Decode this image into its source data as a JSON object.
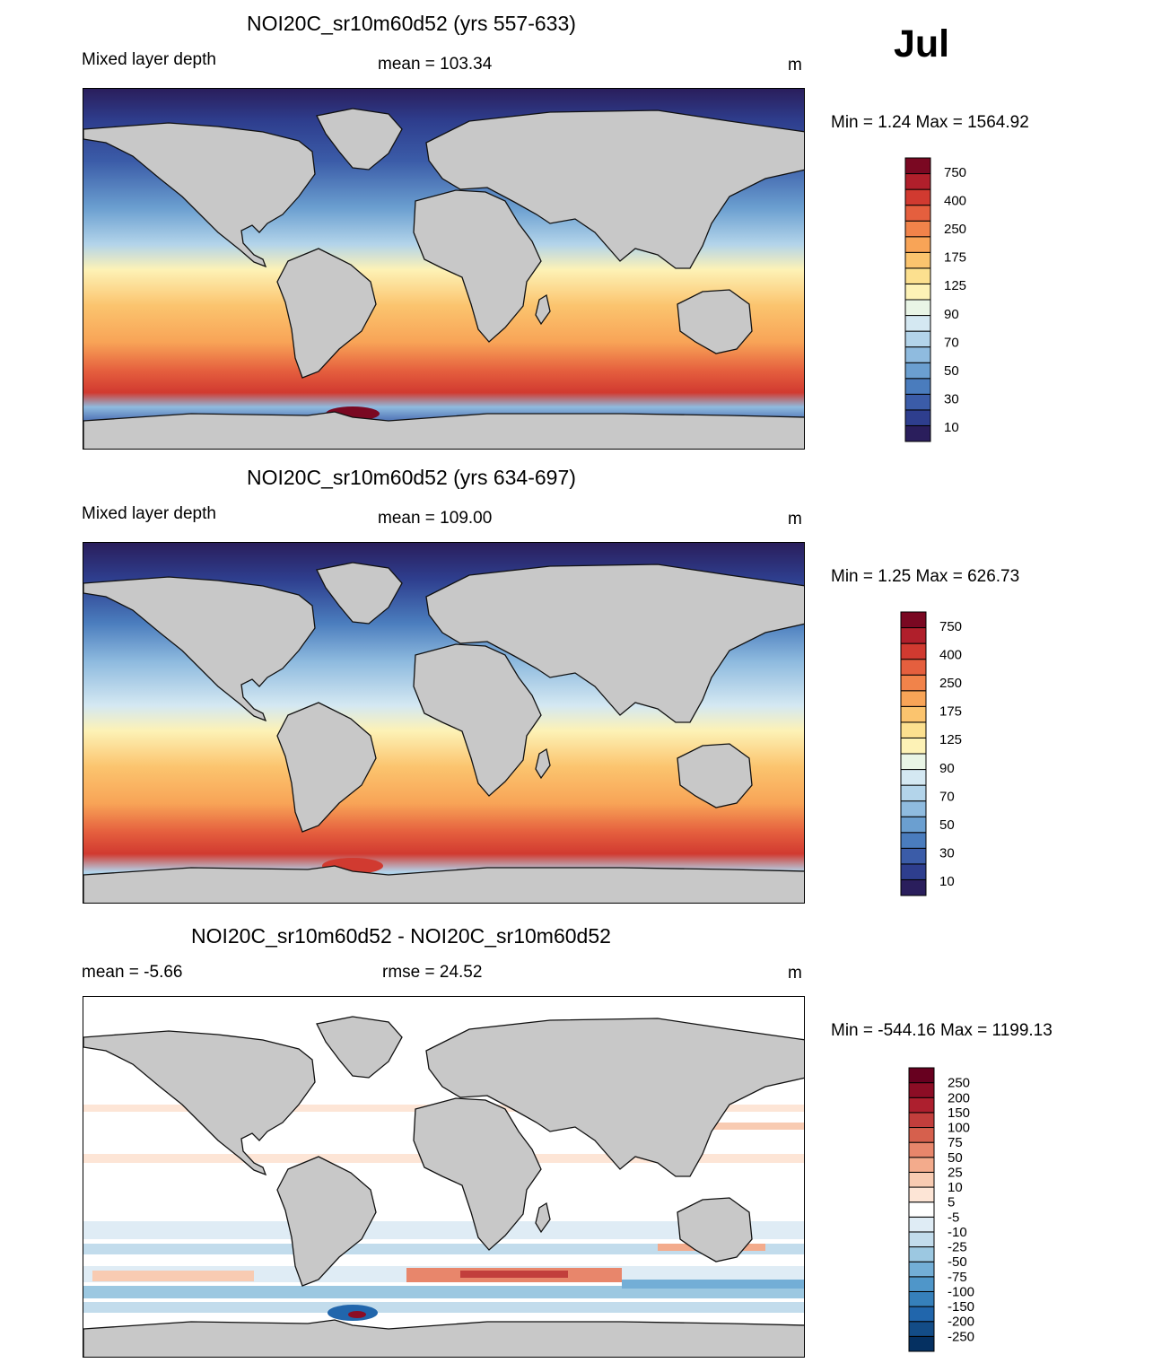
{
  "month": "Jul",
  "panels": [
    {
      "title": "NOI20C_sr10m60d52 (yrs 557-633)",
      "left_label": "Mixed layer depth",
      "center_label": "mean = 103.34",
      "units": "m",
      "minmax": "Min =    1.24 Max = 1564.92",
      "palette": "depth"
    },
    {
      "title": "NOI20C_sr10m60d52 (yrs 634-697)",
      "left_label": "Mixed layer depth",
      "center_label": "mean = 109.00",
      "units": "m",
      "minmax": "Min =    1.25 Max = 626.73",
      "palette": "depth"
    },
    {
      "title": "NOI20C_sr10m60d52 - NOI20C_sr10m60d52",
      "left_label": "mean =  -5.66",
      "center_label": "rmse =  24.52",
      "units": "m",
      "minmax": "Min = -544.16 Max = 1199.13",
      "palette": "diff"
    }
  ],
  "colorbars": {
    "depth": {
      "colors": [
        "#2a1e5c",
        "#2e3e8e",
        "#3b5ca8",
        "#4a7cbd",
        "#6b9fd0",
        "#8fbbdf",
        "#b3d4ea",
        "#d4e8f2",
        "#e9f5e6",
        "#fdf2b6",
        "#fce08f",
        "#fbc46e",
        "#f8a457",
        "#f1834a",
        "#e55f3e",
        "#d13a30",
        "#b01f2b",
        "#7a0822"
      ],
      "labels": [
        "750",
        "400",
        "250",
        "175",
        "125",
        "90",
        "70",
        "50",
        "30",
        "10"
      ]
    },
    "diff": {
      "colors": [
        "#053061",
        "#134c87",
        "#2166ac",
        "#3680bb",
        "#4f96c9",
        "#73aed6",
        "#9cc8e1",
        "#c2dcec",
        "#dfecf5",
        "#ffffff",
        "#fde5d6",
        "#f8cbb2",
        "#f3ab8c",
        "#e8866b",
        "#d6604d",
        "#c23e3c",
        "#ad1f2e",
        "#8c0d25",
        "#67001f"
      ],
      "labels": [
        "250",
        "200",
        "150",
        "100",
        "75",
        "50",
        "25",
        "10",
        "5",
        "-5",
        "-10",
        "-25",
        "-50",
        "-75",
        "-100",
        "-150",
        "-200",
        "-250"
      ]
    }
  }
}
